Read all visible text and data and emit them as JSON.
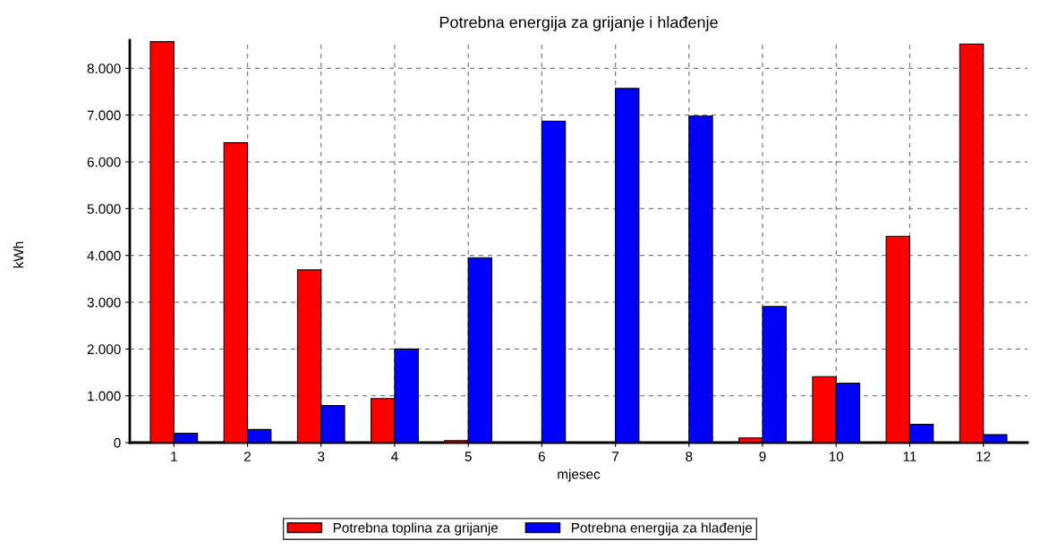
{
  "chart_data": {
    "type": "bar",
    "title": "Potrebna energija za grijanje i hlađenje",
    "xlabel": "mjesec",
    "ylabel": "kWh",
    "categories": [
      "1",
      "2",
      "3",
      "4",
      "5",
      "6",
      "7",
      "8",
      "9",
      "10",
      "11",
      "12"
    ],
    "series": [
      {
        "name": "Potrebna toplina za grijanje",
        "color": "#ff0000",
        "values": [
          8570,
          6410,
          3690,
          940,
          40,
          0,
          0,
          0,
          100,
          1410,
          4410,
          8520
        ]
      },
      {
        "name": "Potrebna energija za hlađenje",
        "color": "#0000ff",
        "values": [
          200,
          280,
          790,
          2000,
          3950,
          6870,
          7570,
          6980,
          2910,
          1270,
          390,
          170
        ]
      }
    ],
    "ylim": [
      0,
      8600
    ],
    "yticks": [
      {
        "value": 0,
        "label": "0"
      },
      {
        "value": 1000,
        "label": "1.000"
      },
      {
        "value": 2000,
        "label": "2.000"
      },
      {
        "value": 3000,
        "label": "3.000"
      },
      {
        "value": 4000,
        "label": "4.000"
      },
      {
        "value": 5000,
        "label": "5.000"
      },
      {
        "value": 6000,
        "label": "6.000"
      },
      {
        "value": 7000,
        "label": "7.000"
      },
      {
        "value": 8000,
        "label": "8.000"
      }
    ],
    "grid": true,
    "legend": "bottom"
  }
}
